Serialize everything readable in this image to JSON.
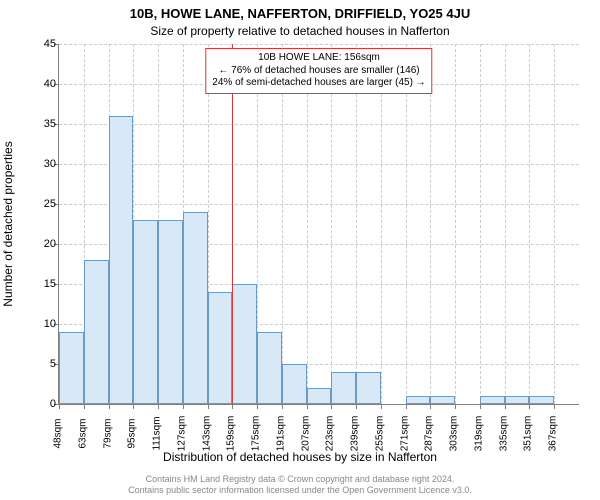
{
  "title": "10B, HOWE LANE, NAFFERTON, DRIFFIELD, YO25 4JU",
  "subtitle": "Size of property relative to detached houses in Nafferton",
  "y_axis_label": "Number of detached properties",
  "x_axis_label": "Distribution of detached houses by size in Nafferton",
  "footer_line1": "Contains HM Land Registry data © Crown copyright and database right 2024.",
  "footer_line2": "Contains public sector information licensed under the Open Government Licence v3.0.",
  "callout": {
    "line1": "10B HOWE LANE: 156sqm",
    "line2": "← 76% of detached houses are smaller (146)",
    "line3": "24% of semi-detached houses are larger (45) →"
  },
  "chart": {
    "type": "histogram",
    "ylim": [
      0,
      45
    ],
    "ytick_step": 5,
    "yticks": [
      0,
      5,
      10,
      15,
      20,
      25,
      30,
      35,
      40,
      45
    ],
    "x_categories": [
      "48sqm",
      "63sqm",
      "79sqm",
      "95sqm",
      "111sqm",
      "127sqm",
      "143sqm",
      "159sqm",
      "175sqm",
      "191sqm",
      "207sqm",
      "223sqm",
      "239sqm",
      "255sqm",
      "271sqm",
      "287sqm",
      "303sqm",
      "319sqm",
      "335sqm",
      "351sqm",
      "367sqm"
    ],
    "values": [
      9,
      18,
      36,
      23,
      23,
      24,
      14,
      15,
      9,
      5,
      2,
      4,
      4,
      0,
      1,
      1,
      0,
      1,
      1,
      1,
      0
    ],
    "marker_bin_left_edge_index": 7,
    "bar_fill": "#d8e8f6",
    "bar_border": "#6a9ac8",
    "marker_color": "#d43a3a",
    "grid_color": "#cccccc",
    "axis_color": "#808080",
    "background": "#ffffff",
    "title_fontsize": 13,
    "subtitle_fontsize": 12,
    "label_fontsize": 12,
    "tick_fontsize": 11,
    "xtick_fontsize": 10,
    "footer_fontsize": 9,
    "footer_color": "#888888"
  }
}
